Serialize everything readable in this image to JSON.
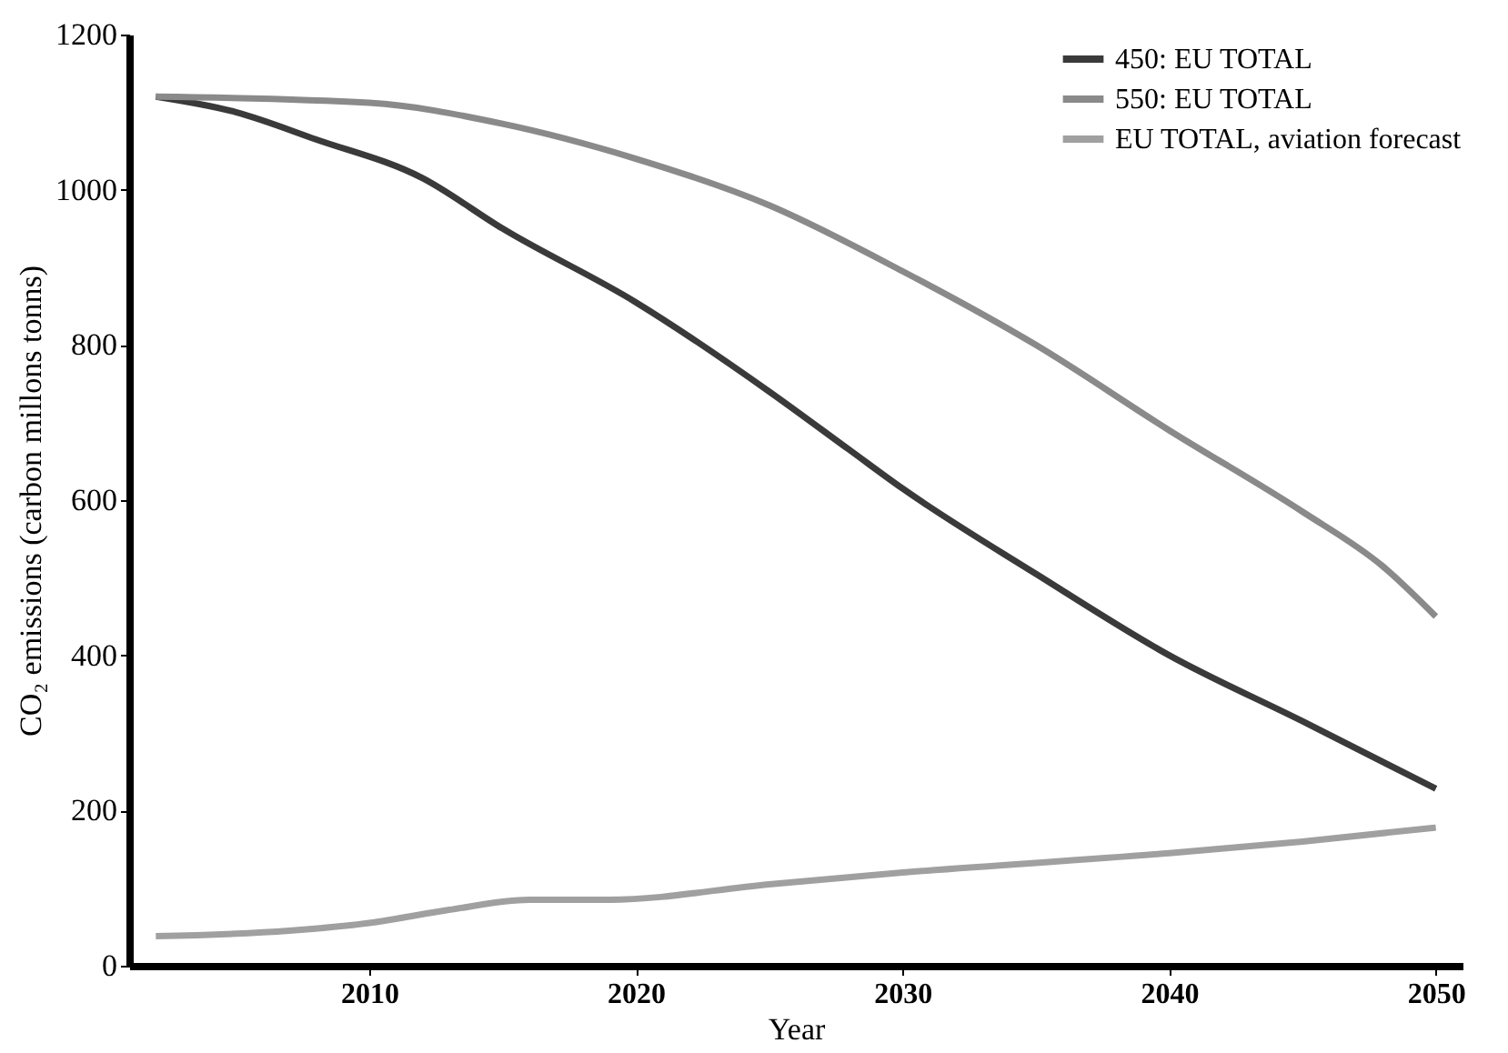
{
  "chart_data": {
    "type": "line",
    "xlabel": "Year",
    "ylabel": "CO₂ emissions (carbon millons tonns)",
    "xlim": [
      2001,
      2051
    ],
    "xticks": [
      2010,
      2020,
      2030,
      2040,
      2050
    ],
    "ylim": [
      0,
      1200
    ],
    "yticks": [
      0,
      200,
      400,
      600,
      800,
      1000,
      1200
    ],
    "grid": false,
    "legend": "top right",
    "line_style": "solid",
    "marker": "none",
    "series": [
      {
        "name": "450: EU TOTAL",
        "color": "#3a3a3a",
        "x": [
          2002,
          2005,
          2008,
          2012,
          2015,
          2020,
          2025,
          2028,
          2030,
          2035,
          2040,
          2045,
          2050
        ],
        "values": [
          1120,
          1100,
          1065,
          1015,
          950,
          855,
          740,
          665,
          615,
          505,
          400,
          315,
          228
        ]
      },
      {
        "name": "550: EU TOTAL",
        "color": "#8a8a8a",
        "x": [
          2002,
          2010,
          2015,
          2020,
          2025,
          2030,
          2035,
          2040,
          2045,
          2048,
          2050
        ],
        "values": [
          1120,
          1112,
          1085,
          1040,
          980,
          895,
          800,
          690,
          585,
          515,
          450
        ]
      },
      {
        "name": "EU TOTAL, aviation forecast",
        "color": "#a0a0a0",
        "x": [
          2002,
          2007,
          2010,
          2013,
          2016,
          2019,
          2025,
          2030,
          2040,
          2045,
          2050
        ],
        "values": [
          38,
          45,
          55,
          72,
          85,
          85,
          105,
          120,
          145,
          160,
          178
        ]
      }
    ]
  }
}
